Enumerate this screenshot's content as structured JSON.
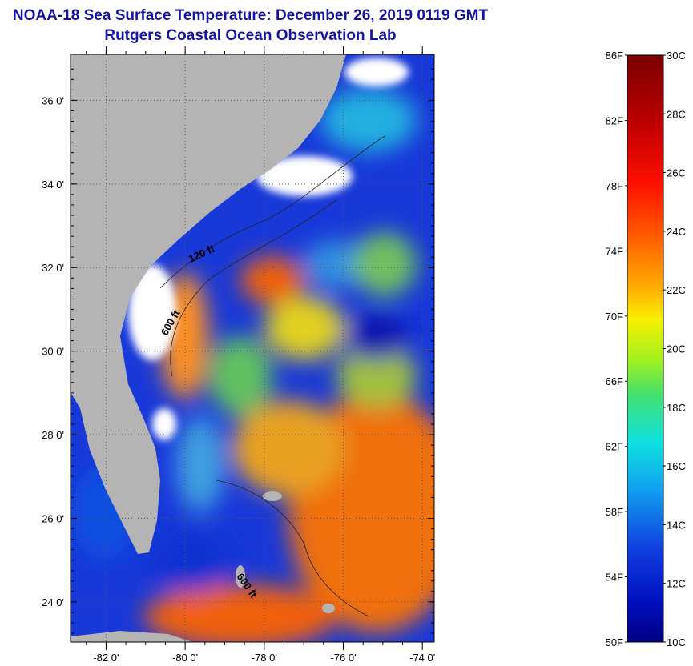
{
  "header": {
    "title": "NOAA-18 Sea Surface Temperature:  December 26, 2019 0119 GMT",
    "subtitle": "Rutgers Coastal Ocean Observation Lab"
  },
  "map": {
    "lat_range": [
      23.04,
      37.1
    ],
    "lon_range": [
      -82.9,
      -73.7
    ],
    "lat_ticks": [
      {
        "value": 36,
        "label": "36 0'"
      },
      {
        "value": 34,
        "label": "34 0'"
      },
      {
        "value": 32,
        "label": "32 0'"
      },
      {
        "value": 30,
        "label": "30 0'"
      },
      {
        "value": 28,
        "label": "28 0'"
      },
      {
        "value": 26,
        "label": "26 0'"
      },
      {
        "value": 24,
        "label": "24 0'"
      }
    ],
    "lon_ticks": [
      {
        "value": -82,
        "label": "-82 0'"
      },
      {
        "value": -80,
        "label": "-80 0'"
      },
      {
        "value": -78,
        "label": "-78 0'"
      },
      {
        "value": -76,
        "label": "-76 0'"
      },
      {
        "value": -74,
        "label": "-74 0'"
      }
    ],
    "contour_labels": [
      "120 ft",
      "600 ft",
      "600 ft"
    ],
    "colors": {
      "land": "#b4b4b4",
      "cloud": "#ffffff",
      "frame": "#000000"
    }
  },
  "colorbar": {
    "f_range": [
      50,
      86
    ],
    "f_ticks": [
      {
        "value": 86,
        "label": "86F"
      },
      {
        "value": 82,
        "label": "82F"
      },
      {
        "value": 78,
        "label": "78F"
      },
      {
        "value": 74,
        "label": "74F"
      },
      {
        "value": 70,
        "label": "70F"
      },
      {
        "value": 66,
        "label": "66F"
      },
      {
        "value": 62,
        "label": "62F"
      },
      {
        "value": 58,
        "label": "58F"
      },
      {
        "value": 54,
        "label": "54F"
      },
      {
        "value": 50,
        "label": "50F"
      }
    ],
    "c_ticks": [
      {
        "value": 30,
        "label": "30C"
      },
      {
        "value": 28,
        "label": "28C"
      },
      {
        "value": 26,
        "label": "26C"
      },
      {
        "value": 24,
        "label": "24C"
      },
      {
        "value": 22,
        "label": "22C"
      },
      {
        "value": 20,
        "label": "20C"
      },
      {
        "value": 18,
        "label": "18C"
      },
      {
        "value": 16,
        "label": "16C"
      },
      {
        "value": 14,
        "label": "14C"
      },
      {
        "value": 12,
        "label": "12C"
      },
      {
        "value": 10,
        "label": "10C"
      }
    ]
  }
}
